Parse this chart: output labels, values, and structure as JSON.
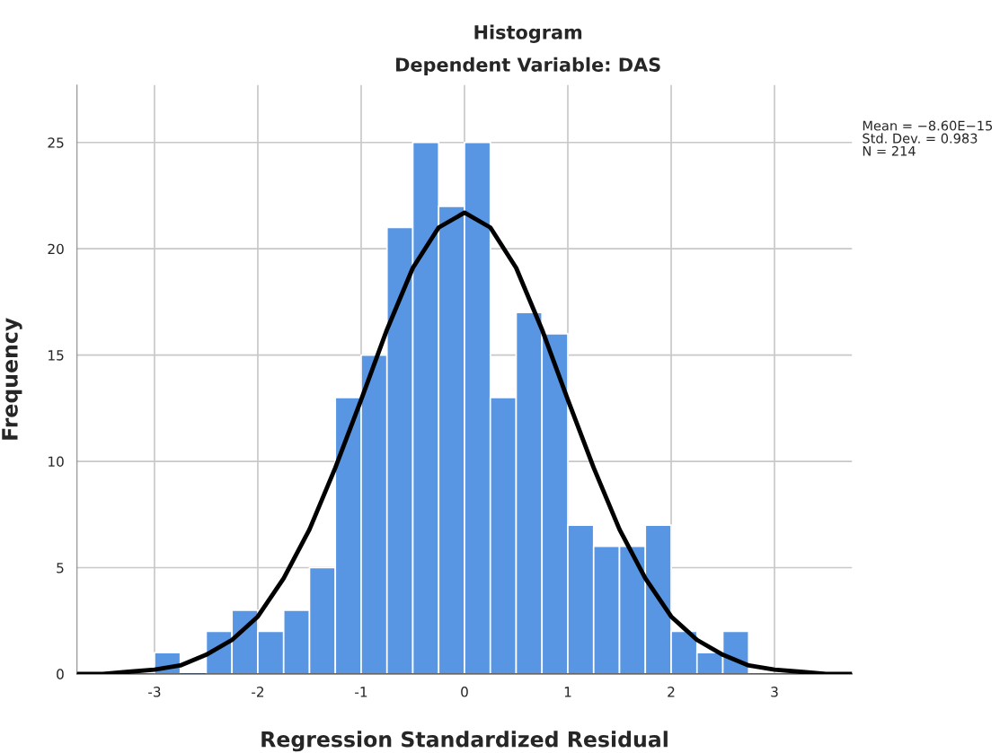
{
  "chart_data": {
    "type": "histogram",
    "title": "Histogram",
    "subtitle": "Dependent Variable: DAS",
    "xlabel": "Regression Standardized Residual",
    "ylabel": "Frequency",
    "bins": [
      -3,
      -2.75,
      -2.5,
      -2.25,
      -2,
      -1.75,
      -1.5,
      -1.25,
      -1,
      -0.75,
      -0.5,
      -0.25,
      0,
      0.25,
      0.5,
      0.75,
      1,
      1.25,
      1.5,
      1.75,
      2,
      2.25,
      2.5,
      2.75
    ],
    "series": [
      {
        "color": "#5896e3",
        "values": [
          1,
          0,
          2,
          3,
          2,
          3,
          5,
          13,
          15,
          21,
          25,
          22,
          25,
          13,
          17,
          16,
          7,
          6,
          6,
          7,
          2,
          1,
          2
        ]
      },
      {
        "type": "line",
        "color": "#000000",
        "x": [
          -3.75,
          -3.5,
          -3.25,
          -3,
          -2.75,
          -2.5,
          -2.25,
          -2,
          -1.75,
          -1.5,
          -1.25,
          -1,
          -0.75,
          -0.5,
          -0.25,
          0,
          0.25,
          0.5,
          0.75,
          1,
          1.25,
          1.5,
          1.75,
          2,
          2.25,
          2.5,
          2.75,
          3,
          3.25,
          3.5,
          3.75
        ],
        "values": [
          0.0,
          0.0,
          0.1,
          0.2,
          0.4,
          0.9,
          1.6,
          2.7,
          4.5,
          6.8,
          9.7,
          12.9,
          16.2,
          19.1,
          21.0,
          21.7,
          21.0,
          19.1,
          16.2,
          12.9,
          9.7,
          6.8,
          4.5,
          2.7,
          1.6,
          0.9,
          0.4,
          0.2,
          0.1,
          0.0,
          0.0
        ]
      }
    ],
    "xlim": [
      -3.75,
      3.75
    ],
    "ylim": [
      0,
      27.7
    ],
    "xticks": [
      -3,
      -2,
      -1,
      0,
      1,
      2,
      3
    ],
    "yticks": [
      0,
      5,
      10,
      15,
      20,
      25
    ],
    "grid": true,
    "annotations": [
      "Mean = −8.60E−15\nStd. Dev. = 0.983\nN = 214"
    ]
  }
}
